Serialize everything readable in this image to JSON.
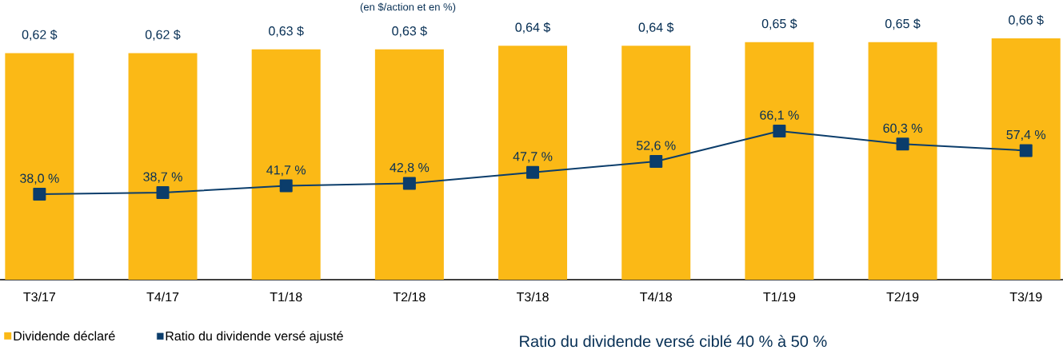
{
  "chart_data": {
    "type": "bar",
    "subtitle": "(en $/action et en %)",
    "categories": [
      "T3/17",
      "T4/17",
      "T1/18",
      "T2/18",
      "T3/18",
      "T4/18",
      "T1/19",
      "T2/19",
      "T3/19"
    ],
    "series": [
      {
        "name": "Dividende déclaré",
        "color": "#fbb916",
        "values": [
          0.62,
          0.62,
          0.63,
          0.63,
          0.64,
          0.64,
          0.65,
          0.65,
          0.66
        ],
        "value_labels": [
          "0,62 $",
          "0,62 $",
          "0,63 $",
          "0,63 $",
          "0,64 $",
          "0,64 $",
          "0,65 $",
          "0,65 $",
          "0,66 $"
        ]
      },
      {
        "name": "Ratio du dividende versé ajusté",
        "type": "line",
        "axis": "y2",
        "color": "#0b3d6b",
        "marker": "square",
        "values": [
          38.0,
          38.7,
          41.7,
          42.8,
          47.7,
          52.6,
          66.1,
          60.3,
          57.4
        ],
        "value_labels": [
          "38,0 %",
          "38,7 %",
          "41,7 %",
          "42,8 %",
          "47,7 %",
          "52,6 %",
          "66,1 %",
          "60,3 %",
          "57,4 %"
        ]
      }
    ],
    "tick_labels": "x",
    "legend": "bottom",
    "annotations": [
      "Ratio du dividende versé ciblé 40 % à 50 %"
    ]
  }
}
